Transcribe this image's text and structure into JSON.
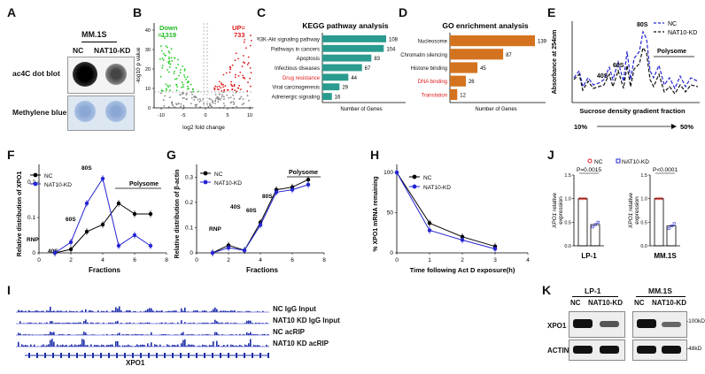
{
  "panel_labels": [
    "A",
    "B",
    "C",
    "D",
    "E",
    "F",
    "G",
    "H",
    "I",
    "J",
    "K"
  ],
  "panel_a": {
    "group": "MM.1S",
    "cols": [
      "NC",
      "NAT10-KD"
    ],
    "rows": [
      "ac4C dot blot",
      "Methylene blue"
    ]
  },
  "panel_b": {
    "chart_data": {
      "type": "scatter",
      "title": "Volcano plot",
      "xlabel": "log2 fold change",
      "ylabel": "-log10 p value",
      "x_ticks": [
        -10,
        -5,
        0,
        5,
        10
      ],
      "y_ticks": [
        0,
        10,
        20,
        30,
        40
      ],
      "down_label": "Down",
      "down_count": "=1319",
      "up_label": "UP=",
      "up_count": "733"
    },
    "xlabel_html": "log2 fold change",
    "ylabel_html": "-log10 p value"
  },
  "panel_c": {
    "chart_data": {
      "type": "bar",
      "title": "KEGG pathway analysis",
      "xlabel": "Number of Genes",
      "categories": [
        "PI3K-Akt signaling pathway",
        "Pathways in cancers",
        "Apoptosis",
        "Infectious diseases",
        "Drug resistance",
        "Viral carcinogenesis",
        "Adrenergic signaling"
      ],
      "values": [
        108,
        104,
        83,
        67,
        44,
        29,
        16
      ],
      "highlight": [
        "Drug resistance"
      ],
      "color": "#2b9b8f"
    }
  },
  "panel_d": {
    "chart_data": {
      "type": "bar",
      "title": "GO enrichment analysis",
      "xlabel": "Number of Genes",
      "categories": [
        "Nucleosome",
        "Chromatin silencing",
        "Histone binding",
        "DNA binding",
        "Translation"
      ],
      "values": [
        139,
        87,
        45,
        26,
        12
      ],
      "highlight": [
        "DNA binding",
        "Translation"
      ],
      "color": "#d4731f"
    }
  },
  "panel_e": {
    "chart_data": {
      "type": "line",
      "ylabel": "Absorbance at 254nm",
      "xlabel": "Sucrose density gradient fraction",
      "legend": [
        "NC",
        "NAT10-KD"
      ],
      "annotations": [
        "80S",
        "60S",
        "40S",
        "Polysome"
      ],
      "x_start": "10%",
      "x_end": "50%"
    }
  },
  "panel_f": {
    "chart_data": {
      "type": "line",
      "ylabel": "Relative distribution of XPO1",
      "xlabel": "Fractions",
      "x_ticks": [
        0,
        2,
        4,
        6,
        8
      ],
      "y_ticks": [
        "0",
        "0.1",
        "0.2"
      ],
      "ylim": [
        0,
        0.25
      ],
      "xlim": [
        0,
        8
      ],
      "legend": [
        "NC",
        "NAT10-KD"
      ],
      "annotations": [
        "RNP",
        "40S",
        "60S",
        "80S",
        "Polysome"
      ],
      "series": [
        {
          "name": "NC",
          "x": [
            1,
            2,
            3,
            4,
            5,
            6,
            7
          ],
          "y": [
            0,
            0.01,
            0.06,
            0.08,
            0.14,
            0.11,
            0.11
          ]
        },
        {
          "name": "NAT10-KD",
          "x": [
            1,
            2,
            3,
            4,
            5,
            6,
            7
          ],
          "y": [
            0,
            0.03,
            0.14,
            0.21,
            0.02,
            0.05,
            0.02
          ]
        }
      ]
    }
  },
  "panel_g": {
    "chart_data": {
      "type": "line",
      "ylabel": "Relative distribution of β-actin",
      "xlabel": "Fractions",
      "x_ticks": [
        0,
        2,
        4,
        6,
        8
      ],
      "y_ticks": [
        "0",
        "0.1",
        "0.2",
        "0.3"
      ],
      "ylim": [
        0,
        0.35
      ],
      "xlim": [
        0,
        8
      ],
      "legend": [
        "NC",
        "NAT10-KD"
      ],
      "annotations": [
        "RNP",
        "40S",
        "60S",
        "80S",
        "Polysome"
      ],
      "series": [
        {
          "name": "NC",
          "x": [
            1,
            2,
            3,
            4,
            5,
            6,
            7
          ],
          "y": [
            0,
            0.03,
            0.01,
            0.12,
            0.25,
            0.26,
            0.29
          ]
        },
        {
          "name": "NAT10-KD",
          "x": [
            1,
            2,
            3,
            4,
            5,
            6,
            7
          ],
          "y": [
            0,
            0.02,
            0.01,
            0.11,
            0.24,
            0.25,
            0.27
          ]
        }
      ]
    }
  },
  "panel_h": {
    "chart_data": {
      "type": "line",
      "ylabel": "% XPO1 mRNA remaining",
      "xlabel": "Time following Act D exposure(h)",
      "x_ticks": [
        0,
        1,
        2,
        3,
        4
      ],
      "y_ticks": [
        "0",
        "50",
        "100"
      ],
      "ylim": [
        0,
        110
      ],
      "xlim": [
        0,
        4
      ],
      "legend": [
        "NC",
        "NAT10-KD"
      ],
      "series": [
        {
          "name": "NC",
          "x": [
            0,
            1,
            2,
            3
          ],
          "y": [
            100,
            37,
            20,
            8
          ]
        },
        {
          "name": "NAT10-KD",
          "x": [
            0,
            1,
            2,
            3
          ],
          "y": [
            100,
            28,
            16,
            5
          ]
        }
      ]
    }
  },
  "panel_i": {
    "tracks": [
      "NC IgG Input",
      "NAT10 KD  IgG Input",
      "NC acRIP",
      "NAT10 KD acRIP"
    ],
    "gene": "XPO1"
  },
  "panel_j": {
    "legend": [
      "NC",
      "NAT10-KD"
    ],
    "ylabel_gene": "XPO1",
    "ylabel_rest": "relative expression",
    "charts": [
      {
        "title": "LP-1",
        "p": "P=0.0015",
        "y_ticks": [
          "0.0",
          "0.5",
          "1.0",
          "1.5"
        ],
        "values": [
          1.0,
          0.45
        ]
      },
      {
        "title": "MM.1S",
        "p": "P<0.0001",
        "y_ticks": [
          "0.0",
          "0.5",
          "1.0",
          "1.5"
        ],
        "values": [
          1.0,
          0.42
        ]
      }
    ]
  },
  "panel_k": {
    "groups": [
      "LP-1",
      "MM.1S"
    ],
    "cols": [
      "NC",
      "NAT10-KD"
    ],
    "rows": [
      "XPO1",
      "ACTIN"
    ],
    "markers": [
      "-100kD",
      "-48kD"
    ]
  }
}
